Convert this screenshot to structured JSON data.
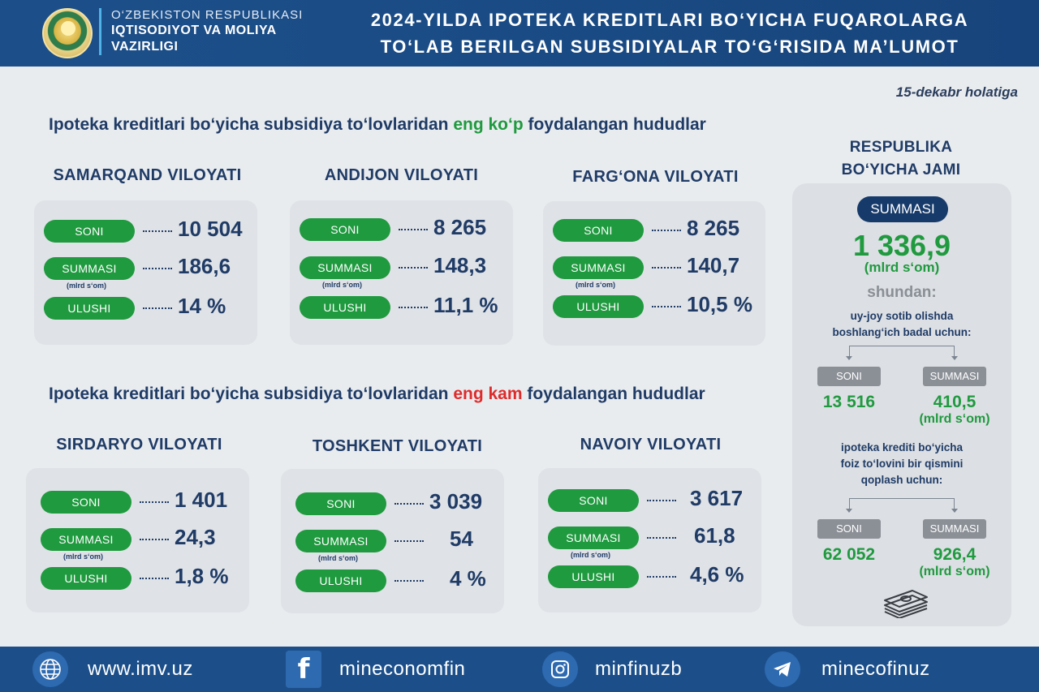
{
  "header": {
    "ministry_line1": "O‘ZBEKISTON RESPUBLIKASI",
    "ministry_line2": "IQTISODIYOT VA MOLIYA",
    "ministry_line3": "VAZIRLIGI",
    "title_line1": "2024-YILDA IPOTEKA KREDITLARI BO‘YICHA FUQAROLARGA",
    "title_line2": "TO‘LAB BERILGAN SUBSIDIYALAR TO‘G‘RISIDA MA’LUMOT"
  },
  "date": "15-dekabr holatiga",
  "section_most": {
    "prefix": "Ipoteka kreditlari bo‘yicha subsidiya to‘lovlaridan ",
    "highlight": "eng ko‘p",
    "suffix": " foydalangan hududlar"
  },
  "section_least": {
    "prefix": "Ipoteka kreditlari bo‘yicha subsidiya to‘lovlaridan ",
    "highlight": "eng kam",
    "suffix": " foydalangan hududlar"
  },
  "labels": {
    "soni": "SONI",
    "summasi": "SUMMASI",
    "ulushi": "ULUSHI",
    "unit_small": "(mlrd s‘om)"
  },
  "regions_most": [
    {
      "name": "SAMARQAND VILOYATI",
      "soni": "10 504",
      "summasi": "186,6",
      "ulushi": "14 %"
    },
    {
      "name": "ANDIJON VILOYATI",
      "soni": "8 265",
      "summasi": "148,3",
      "ulushi": "11,1 %"
    },
    {
      "name": "FARG‘ONA VILOYATI",
      "soni": "8 265",
      "summasi": "140,7",
      "ulushi": "10,5 %"
    }
  ],
  "regions_least": [
    {
      "name": "SIRDARYO VILOYATI",
      "soni": "1 401",
      "summasi": "24,3",
      "ulushi": "1,8 %"
    },
    {
      "name": "TOSHKENT VILOYATI",
      "soni": "3 039",
      "summasi": "54",
      "ulushi": "4 %"
    },
    {
      "name": "NAVOIY VILOYATI",
      "soni": "3 617",
      "summasi": "61,8",
      "ulushi": "4,6 %"
    }
  ],
  "republic": {
    "title_line1": "RESPUBLIKA",
    "title_line2": "BO‘YICHA JAMI",
    "summasi_label": "SUMMASI",
    "total": "1 336,9",
    "total_unit": "(mlrd s‘om)",
    "shundan": "shundan:",
    "part1_desc_line1": "uy-joy sotib olishda",
    "part1_desc_line2": "boshlang‘ich badal uchun:",
    "part1_soni_label": "SONI",
    "part1_summasi_label": "SUMMASI",
    "part1_soni": "13 516",
    "part1_summasi": "410,5",
    "part1_unit": "(mlrd s‘om)",
    "part2_desc_line1": "ipoteka krediti bo‘yicha",
    "part2_desc_line2": "foiz to‘lovini bir qismini",
    "part2_desc_line3": "qoplash uchun:",
    "part2_soni_label": "SONI",
    "part2_summasi_label": "SUMMASI",
    "part2_soni": "62 052",
    "part2_summasi": "926,4",
    "part2_unit": "(mlrd s‘om)"
  },
  "footer": {
    "website": "www.imv.uz",
    "facebook": "mineconomfin",
    "instagram": "minfinuzb",
    "telegram": "minecofinuz"
  },
  "colors": {
    "header_blue": "#1c4f8a",
    "pill_green": "#1f9a3f",
    "text_navy": "#1f3b66",
    "highlight_red": "#e02b2b"
  }
}
